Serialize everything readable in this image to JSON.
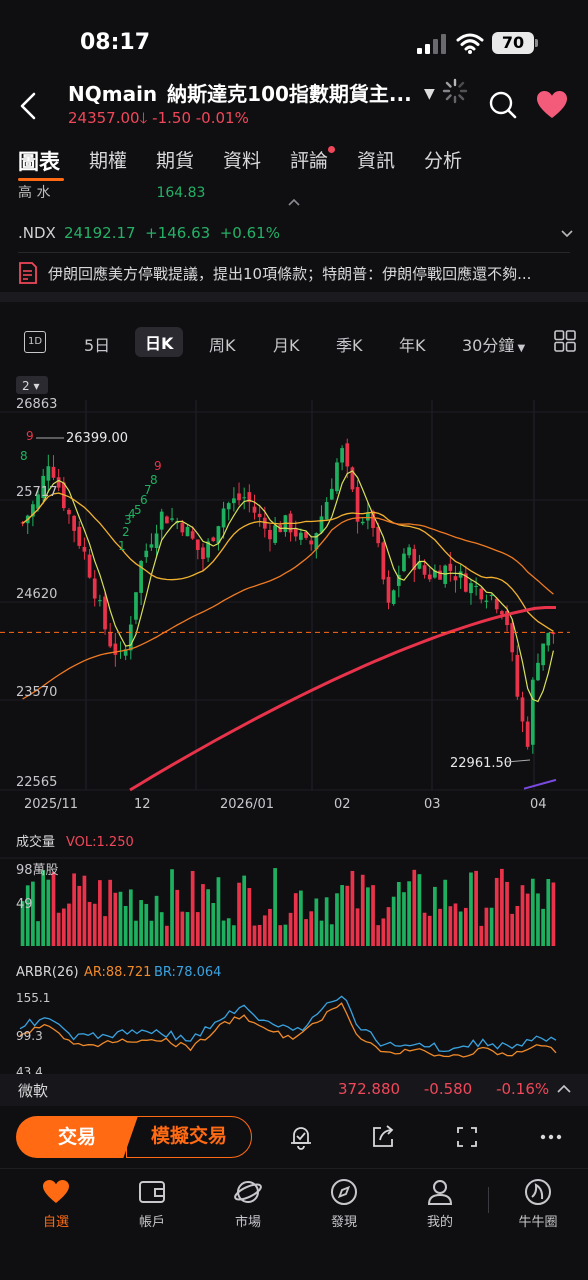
{
  "status": {
    "time": "08:17",
    "battery": "70"
  },
  "header": {
    "symbol": "NQmain",
    "name": "納斯達克100指數期貨主...",
    "price": "24357.00",
    "change": "-1.50",
    "change_pct": "-0.01%"
  },
  "tabs": [
    "圖表",
    "期權",
    "期貨",
    "資料",
    "評論",
    "資訊",
    "分析"
  ],
  "cut_row": {
    "label": "高 水",
    "value": "164.83"
  },
  "ndx": {
    "name": ".NDX",
    "value": "24192.17",
    "change": "+146.63",
    "change_pct": "+0.61%"
  },
  "news": {
    "text": "伊朗回應美方停戰提議，提出10項條款；特朗普：伊朗停戰回應還不夠..."
  },
  "periods": {
    "icon_label": "1D",
    "items": [
      "5日",
      "日K",
      "周K",
      "月K",
      "季K",
      "年K",
      "30分鐘"
    ]
  },
  "chart_data": {
    "type": "candlestick",
    "indicator_badge": "2",
    "y_labels": [
      "26863",
      "25717",
      "24620",
      "23570",
      "22565"
    ],
    "x_labels": [
      "2025/11",
      "12",
      "2026/01",
      "02",
      "03",
      "04"
    ],
    "annotations": {
      "high": "26399.00",
      "low": "22961.50",
      "seq_numbers": [
        "9",
        "8",
        "9",
        "8",
        "7",
        "6",
        "5",
        "4",
        "3",
        "2",
        "1"
      ]
    },
    "current_price_line": 24357,
    "volume": {
      "title": "成交量",
      "vol_label": "VOL:1.250",
      "max_label": "98萬股",
      "mid_label": "49"
    },
    "arbr": {
      "title": "ARBR(26)",
      "ar_label": "AR:88.721",
      "br_label": "BR:78.064",
      "y_labels": [
        "155.1",
        "99.3",
        "43.4"
      ]
    },
    "colors": {
      "up": "#1fb05f",
      "down": "#e8334a",
      "ma_short": "#d8e05a",
      "ma_mid": "#f2b230",
      "ma_long_orange": "#f07a22",
      "ma_long_red": "#e8334a",
      "ar": "#f08a2a",
      "br": "#3aa3e0"
    }
  },
  "bottom_quote": {
    "name": "微軟",
    "price": "372.880",
    "change": "-0.580",
    "change_pct": "-0.16%"
  },
  "actions": {
    "trade": "交易",
    "sim_trade": "模擬交易"
  },
  "tabbar": [
    "自選",
    "帳戶",
    "市場",
    "發現",
    "我的",
    "牛牛圈"
  ]
}
